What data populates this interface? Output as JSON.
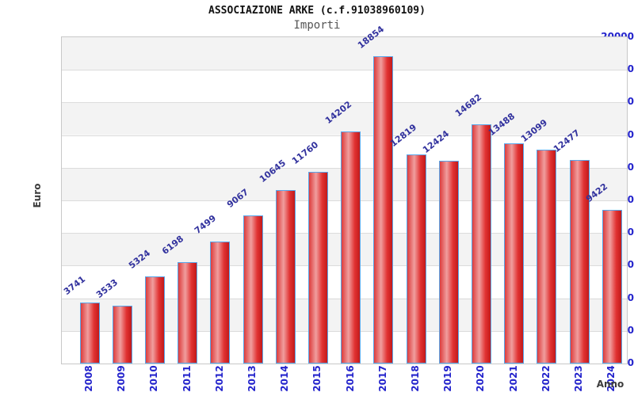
{
  "header": {
    "title": "ASSOCIAZIONE ARKE (c.f.91038960109)",
    "subtitle": "Importi"
  },
  "chart_data": {
    "type": "bar",
    "title": "ASSOCIAZIONE ARKE (c.f.91038960109)",
    "subtitle": "Importi",
    "xlabel": "Anno",
    "ylabel": "Euro",
    "categories": [
      "2008",
      "2009",
      "2010",
      "2011",
      "2012",
      "2013",
      "2014",
      "2015",
      "2016",
      "2017",
      "2018",
      "2019",
      "2020",
      "2021",
      "2022",
      "2023",
      "2024"
    ],
    "values": [
      3741,
      3533,
      5324,
      6198,
      7499,
      9067,
      10645,
      11760,
      14202,
      18854,
      12819,
      12424,
      14682,
      13488,
      13099,
      12477,
      9422
    ],
    "ylim": [
      0,
      20000
    ],
    "ytick_step": 2000,
    "grid": "horizontal-bands-alternating",
    "legend_position": "none",
    "colors": {
      "bar_fill": "#e13232",
      "bar_highlight": "#f09e9e",
      "bar_shadow": "#c21a1a",
      "bar_border": "#58a6ea",
      "tick_label": "#2323cc",
      "value_label": "#32329e",
      "axis_title": "#3c3c3c",
      "band": "#f3f3f3",
      "gridline": "#dcdcdc",
      "plot_border": "#c8c8c8"
    }
  }
}
